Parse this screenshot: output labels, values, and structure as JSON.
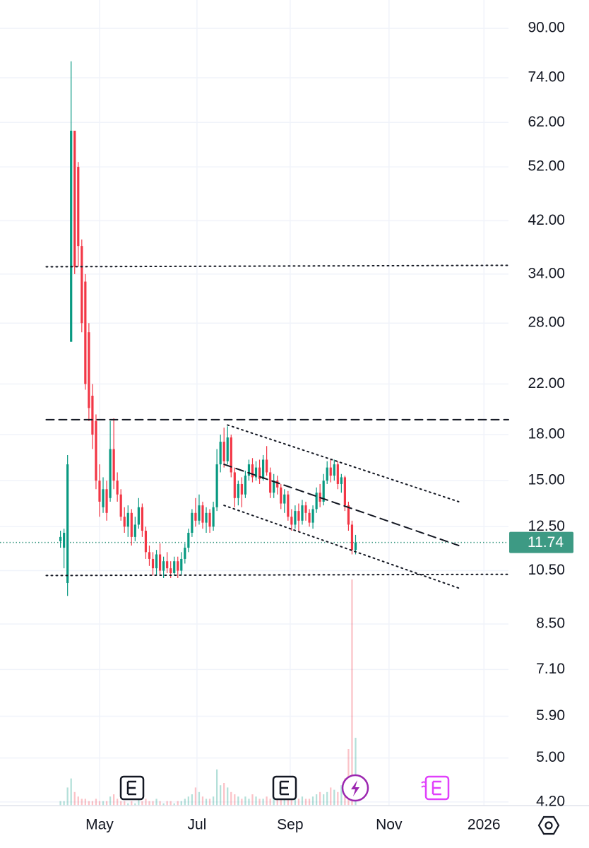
{
  "chart_data": {
    "type": "candlestick",
    "log_scale": true,
    "grid": true,
    "up_color": "#089981",
    "down_color": "#f23645",
    "categories": [
      null,
      null,
      null,
      null,
      null,
      null,
      null,
      null,
      null,
      null,
      null,
      null,
      null,
      null,
      null,
      null,
      null,
      null,
      null,
      null,
      null,
      null,
      null,
      null,
      null,
      null,
      null,
      null,
      null,
      null,
      null,
      null,
      null,
      null,
      null,
      null,
      null,
      null,
      null,
      null,
      null,
      null,
      null,
      null,
      null,
      null,
      null,
      null,
      null,
      null,
      null,
      null,
      null,
      null,
      null,
      null,
      null,
      null,
      null,
      null,
      null,
      null,
      null,
      null,
      null,
      null,
      null,
      null,
      null,
      null,
      null,
      null,
      null,
      null,
      null,
      null,
      null,
      null,
      null,
      null,
      null,
      null,
      null,
      null
    ],
    "open": [
      11.8,
      11.5,
      10,
      26,
      60,
      52,
      38,
      33,
      27,
      21,
      19,
      15,
      13.5,
      14.5,
      14,
      17,
      15,
      14.2,
      13,
      12.5,
      13.2,
      12,
      12.6,
      13.5,
      12.3,
      11.3,
      11,
      10.6,
      11.2,
      10.5,
      10.9,
      10.6,
      10.4,
      10.9,
      10.5,
      11,
      11.5,
      12.2,
      13.2,
      12.8,
      13.6,
      12.7,
      13.2,
      12.5,
      13.5,
      16,
      17.5,
      16.2,
      17.8,
      15.5,
      14,
      14.8,
      14.2,
      15.3,
      16,
      15.2,
      15.8,
      15.1,
      16.3,
      15.5,
      14.3,
      15,
      14.6,
      13.7,
      14.2,
      13,
      12.6,
      13.3,
      12.8,
      13.6,
      13.2,
      12.7,
      13.4,
      14.3,
      13.8,
      15,
      15.8,
      15.3,
      16,
      14.8,
      15.2,
      13.6,
      12.6,
      11.4
    ],
    "high": [
      12.3,
      12.4,
      16.6,
      79,
      60,
      53,
      39,
      34,
      28,
      22,
      19.5,
      16,
      15.2,
      15,
      19,
      19.2,
      15.5,
      14.5,
      13.5,
      13.6,
      13.4,
      13,
      14,
      13.7,
      12.5,
      11.6,
      11.3,
      11.4,
      11.7,
      11.1,
      11.3,
      10.9,
      11.1,
      11.1,
      11.3,
      11.7,
      12.4,
      13.4,
      14,
      14.2,
      13.8,
      13.5,
      13.4,
      13.8,
      17,
      18,
      18.5,
      18.6,
      18,
      15.8,
      15,
      15.2,
      15.6,
      16.3,
      16.4,
      16.2,
      16.3,
      16.6,
      17.2,
      15.8,
      15.4,
      15.3,
      14.8,
      14.5,
      14.4,
      13.4,
      13.6,
      13.7,
      13.9,
      13.8,
      13.4,
      13.6,
      14.6,
      14.8,
      15.4,
      16.2,
      16.3,
      16.3,
      16.2,
      15.4,
      15.3,
      13.8,
      12.8,
      12.1
    ],
    "low": [
      11.5,
      10.6,
      9.5,
      26,
      34,
      35,
      27,
      21.5,
      19,
      17,
      14.5,
      13,
      13.2,
      12.8,
      13.8,
      14.5,
      13.8,
      12.8,
      12.2,
      12,
      11.6,
      11.8,
      12.4,
      12,
      11,
      10.7,
      10.3,
      10.3,
      10.3,
      10.2,
      10.4,
      10.2,
      10.3,
      10.2,
      10.3,
      10.8,
      11.3,
      12,
      12.5,
      12.6,
      12.4,
      12.2,
      12.2,
      12.3,
      13.3,
      15.5,
      15.8,
      16,
      15.2,
      13.5,
      13.6,
      13.5,
      14,
      15,
      14.9,
      15,
      14.8,
      15,
      15.3,
      14,
      14,
      14.2,
      13.4,
      13.2,
      12.8,
      12.3,
      12.4,
      12.3,
      12.6,
      12.8,
      12.5,
      12.4,
      13.2,
      13.5,
      13.6,
      14.8,
      14.9,
      15,
      14.5,
      14.3,
      13.3,
      12.3,
      11.2,
      11.2
    ],
    "close": [
      12,
      12.2,
      16,
      60,
      35,
      38,
      28,
      22,
      20,
      18,
      15,
      13.8,
      14.5,
      13.2,
      17,
      15,
      14.2,
      13,
      12.5,
      13.2,
      12,
      12.6,
      13.5,
      12.3,
      11.3,
      11,
      10.6,
      11.2,
      10.5,
      10.9,
      10.6,
      10.4,
      10.9,
      10.5,
      11,
      11.5,
      12.2,
      13.2,
      12.8,
      13.6,
      12.7,
      13.2,
      12.5,
      13.5,
      16,
      17.5,
      16.2,
      17.8,
      15.5,
      14,
      14.8,
      14.2,
      15.3,
      16,
      15.2,
      15.8,
      15.1,
      16.3,
      15.5,
      14.3,
      15,
      14.6,
      13.7,
      14.2,
      13,
      12.6,
      13.3,
      12.8,
      13.6,
      13.2,
      12.7,
      13.4,
      14.3,
      13.8,
      15,
      15.8,
      15.3,
      16,
      14.8,
      15.2,
      13.6,
      12.6,
      11.4,
      11.74
    ],
    "volume": [
      2,
      2,
      8,
      12,
      6,
      4,
      3,
      3,
      2,
      2,
      3,
      2,
      2,
      2,
      4,
      5,
      3,
      2,
      2,
      1,
      2,
      1,
      3,
      2,
      3,
      2,
      2,
      3,
      2,
      1,
      2,
      2,
      1,
      2,
      2,
      3,
      4,
      5,
      8,
      6,
      4,
      3,
      3,
      4,
      16,
      9,
      10,
      8,
      6,
      5,
      4,
      3,
      4,
      3,
      5,
      4,
      3,
      3,
      4,
      3,
      4,
      3,
      4,
      3,
      4,
      5,
      3,
      3,
      4,
      3,
      3,
      4,
      5,
      6,
      5,
      6,
      8,
      7,
      6,
      9,
      12,
      25,
      100,
      30
    ],
    "last_price": 11.74,
    "last_price_color": "#3d9a84",
    "xlim": [
      -17,
      126
    ],
    "xticks": [
      {
        "value": 11,
        "label": "May"
      },
      {
        "value": 38.4,
        "label": "Jul"
      },
      {
        "value": 64.6,
        "label": "Sep"
      },
      {
        "value": 92.4,
        "label": "Nov"
      },
      {
        "value": 119.1,
        "label": "2026"
      }
    ],
    "ylim": [
      4.14,
      100.7
    ],
    "yticks": [
      {
        "value": 90,
        "label": "90.00"
      },
      {
        "value": 74,
        "label": "74.00"
      },
      {
        "value": 62,
        "label": "62.00"
      },
      {
        "value": 52,
        "label": "52.00"
      },
      {
        "value": 42,
        "label": "42.00"
      },
      {
        "value": 34,
        "label": "34.00"
      },
      {
        "value": 28,
        "label": "28.00"
      },
      {
        "value": 22,
        "label": "22.00"
      },
      {
        "value": 18,
        "label": "18.00"
      },
      {
        "value": 15,
        "label": "15.00"
      },
      {
        "value": 12.5,
        "label": "12.50"
      },
      {
        "value": 10.5,
        "label": "10.50"
      },
      {
        "value": 8.5,
        "label": "8.50"
      },
      {
        "value": 7.1,
        "label": "7.10"
      },
      {
        "value": 5.9,
        "label": "5.90"
      },
      {
        "value": 5,
        "label": "5.00"
      },
      {
        "value": 4.2,
        "label": "4.20"
      }
    ],
    "drawings": [
      {
        "style": "dotted",
        "x": [
          -4,
          126
        ],
        "y": [
          35,
          35.2
        ]
      },
      {
        "style": "dashed",
        "x": [
          -4,
          126
        ],
        "y": [
          19.1,
          19.1
        ]
      },
      {
        "style": "dotted",
        "x": [
          -4,
          126
        ],
        "y": [
          10.3,
          10.35
        ]
      },
      {
        "style": "dotted",
        "x": [
          47,
          112
        ],
        "y": [
          18.7,
          13.8
        ]
      },
      {
        "style": "dashed",
        "x": [
          46,
          112
        ],
        "y": [
          16,
          11.6
        ]
      },
      {
        "style": "dotted",
        "x": [
          46,
          112
        ],
        "y": [
          13.6,
          9.8
        ]
      }
    ]
  }
}
